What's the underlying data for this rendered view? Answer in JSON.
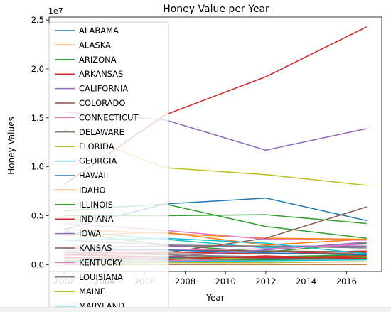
{
  "chart_data": {
    "type": "line",
    "title": "Honey Value per Year",
    "xlabel": "Year",
    "ylabel": "Honey Values",
    "y_multiplier_label": "1e7",
    "x": [
      2002,
      2007,
      2012,
      2017
    ],
    "xlim": [
      2001.25,
      2017.75
    ],
    "ylim": [
      -0.07,
      2.53
    ],
    "x_ticks": [
      "2002",
      "2004",
      "2006",
      "2008",
      "2010",
      "2012",
      "2014",
      "2016"
    ],
    "x_tick_values": [
      2002,
      2004,
      2006,
      2008,
      2010,
      2012,
      2014,
      2016
    ],
    "y_ticks": [
      "0.0",
      "0.5",
      "1.0",
      "1.5",
      "2.0",
      "2.5"
    ],
    "y_tick_values": [
      0.0,
      0.5,
      1.0,
      1.5,
      2.0,
      2.5
    ],
    "grid": false,
    "legend_position": "top-left",
    "series": [
      {
        "name": "ALABAMA",
        "color": "#1f77b4",
        "values": [
          0.03,
          0.04,
          0.05,
          0.09
        ]
      },
      {
        "name": "ALASKA",
        "color": "#ff7f0e",
        "values": [
          0.001,
          0.001,
          0.001,
          0.001
        ]
      },
      {
        "name": "ARIZONA",
        "color": "#2ca02c",
        "values": [
          0.33,
          0.2,
          0.13,
          0.22
        ]
      },
      {
        "name": "ARKANSAS",
        "color": "#d62728",
        "values": [
          0.12,
          0.13,
          0.11,
          0.14
        ]
      },
      {
        "name": "CALIFORNIA",
        "color": "#9467bd",
        "values": [
          1.56,
          1.48,
          1.17,
          1.39
        ]
      },
      {
        "name": "COLORADO",
        "color": "#8c564b",
        "values": [
          0.17,
          0.15,
          0.14,
          0.13
        ]
      },
      {
        "name": "CONNECTICUT",
        "color": "#e377c2",
        "values": [
          0.01,
          0.02,
          0.02,
          0.03
        ]
      },
      {
        "name": "DELAWARE",
        "color": "#7f7f7f",
        "values": [
          0.003,
          0.003,
          0.004,
          0.005
        ]
      },
      {
        "name": "FLORIDA",
        "color": "#bcbd22",
        "values": [
          1.38,
          0.99,
          0.92,
          0.81
        ]
      },
      {
        "name": "GEORGIA",
        "color": "#17becf",
        "values": [
          0.34,
          0.26,
          0.17,
          0.21
        ]
      },
      {
        "name": "HAWAII",
        "color": "#1f77b4",
        "values": [
          0.03,
          0.07,
          0.06,
          0.09
        ]
      },
      {
        "name": "IDAHO",
        "color": "#ff7f0e",
        "values": [
          0.36,
          0.32,
          0.27,
          0.26
        ]
      },
      {
        "name": "ILLINOIS",
        "color": "#2ca02c",
        "values": [
          0.07,
          0.08,
          0.08,
          0.1
        ]
      },
      {
        "name": "INDIANA",
        "color": "#d62728",
        "values": [
          0.07,
          0.08,
          0.07,
          0.09
        ]
      },
      {
        "name": "IOWA",
        "color": "#9467bd",
        "values": [
          0.18,
          0.19,
          0.19,
          0.19
        ]
      },
      {
        "name": "KANSAS",
        "color": "#8c564b",
        "values": [
          0.1,
          0.11,
          0.11,
          0.12
        ]
      },
      {
        "name": "KENTUCKY",
        "color": "#e377c2",
        "values": [
          0.03,
          0.04,
          0.05,
          0.06
        ]
      },
      {
        "name": "LOUISIANA",
        "color": "#7f7f7f",
        "values": [
          0.25,
          0.2,
          0.19,
          0.17
        ]
      },
      {
        "name": "MAINE",
        "color": "#bcbd22",
        "values": [
          0.04,
          0.06,
          0.07,
          0.08
        ]
      },
      {
        "name": "MARYLAND",
        "color": "#17becf",
        "values": [
          0.03,
          0.03,
          0.04,
          0.05
        ]
      },
      {
        "name": "",
        "color": "#d62728",
        "values": [
          0.82,
          1.53,
          1.92,
          2.43
        ]
      },
      {
        "name": "",
        "color": "#1f77b4",
        "values": [
          0.36,
          0.62,
          0.68,
          0.45
        ]
      },
      {
        "name": "",
        "color": "#2ca02c",
        "values": [
          0.5,
          0.5,
          0.51,
          0.42
        ]
      },
      {
        "name": "",
        "color": "#2ca02c",
        "values": [
          0.55,
          0.62,
          0.39,
          0.27
        ]
      },
      {
        "name": "",
        "color": "#8c564b",
        "values": [
          0.1,
          0.12,
          0.27,
          0.59
        ]
      },
      {
        "name": "",
        "color": "#ff7f0e",
        "values": [
          0.3,
          0.33,
          0.2,
          0.26
        ]
      },
      {
        "name": "",
        "color": "#17becf",
        "values": [
          0.25,
          0.27,
          0.22,
          0.11
        ]
      },
      {
        "name": "",
        "color": "#9467bd",
        "values": [
          0.06,
          0.08,
          0.15,
          0.23
        ]
      },
      {
        "name": "",
        "color": "#7f7f7f",
        "values": [
          0.12,
          0.1,
          0.08,
          0.07
        ]
      },
      {
        "name": "",
        "color": "#d62728",
        "values": [
          0.1,
          0.08,
          0.07,
          0.07
        ]
      },
      {
        "name": "",
        "color": "#e377c2",
        "values": [
          0.14,
          0.15,
          0.16,
          0.21
        ]
      },
      {
        "name": "",
        "color": "#bcbd22",
        "values": [
          0.02,
          0.02,
          0.02,
          0.03
        ]
      },
      {
        "name": "",
        "color": "#1f77b4",
        "values": [
          0.16,
          0.15,
          0.12,
          0.1
        ]
      },
      {
        "name": "",
        "color": "#e377c2",
        "values": [
          0.42,
          0.35,
          0.26,
          0.25
        ]
      },
      {
        "name": "",
        "color": "#2ca02c",
        "values": [
          0.04,
          0.06,
          0.05,
          0.07
        ]
      },
      {
        "name": "",
        "color": "#d62728",
        "values": [
          0.08,
          0.05,
          0.09,
          0.06
        ]
      }
    ]
  }
}
